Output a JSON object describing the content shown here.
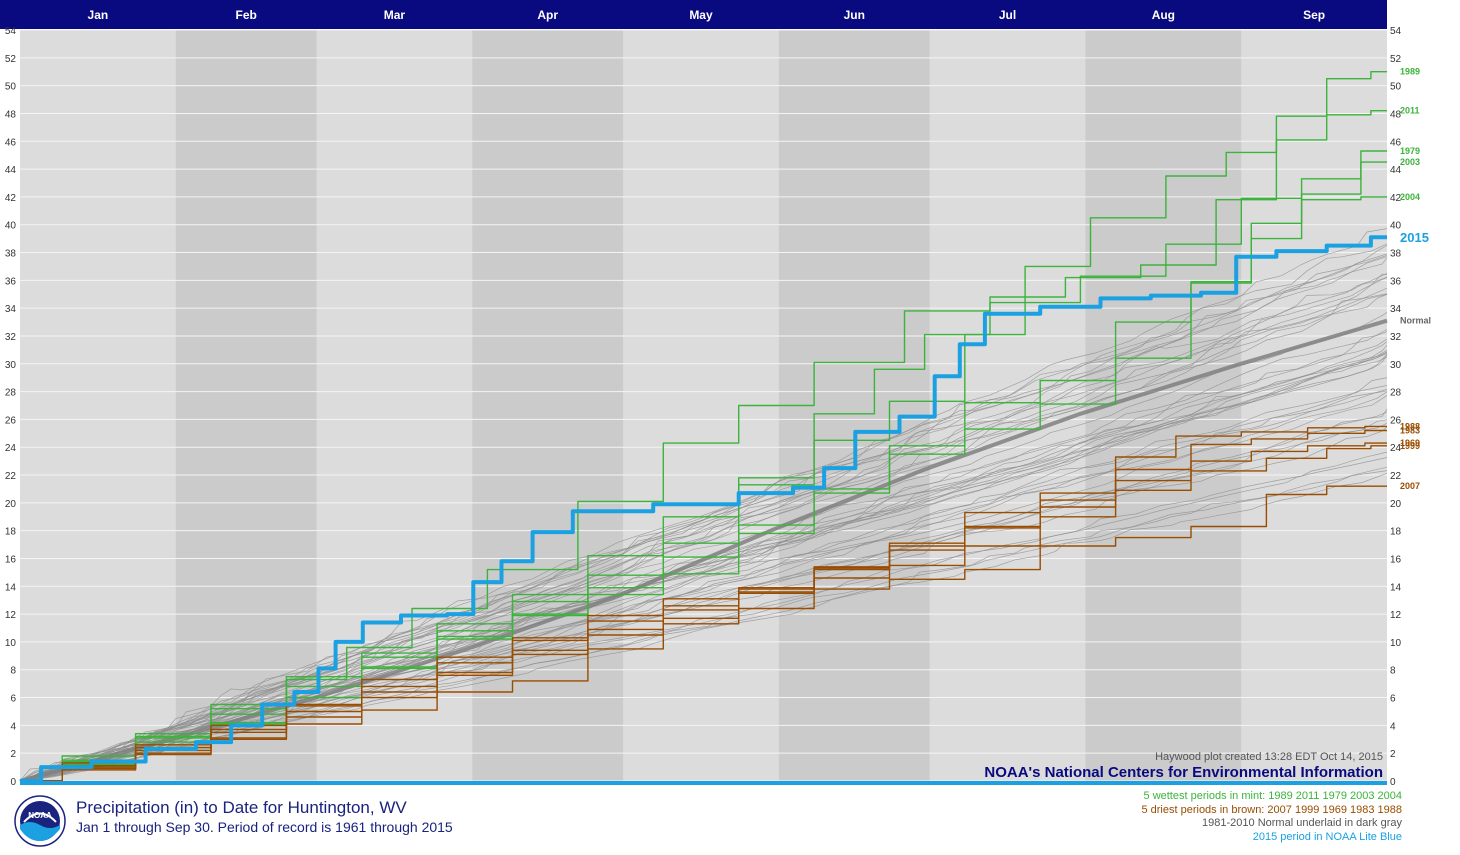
{
  "chart_data": {
    "type": "line",
    "months": [
      "Jan",
      "Feb",
      "Mar",
      "Apr",
      "May",
      "Jun",
      "Jul",
      "Aug",
      "Sep"
    ],
    "x_unit": "day_of_year",
    "xlim": [
      1,
      273
    ],
    "ylim": [
      0,
      54
    ],
    "y_ticks": [
      0,
      2,
      4,
      6,
      8,
      10,
      12,
      14,
      16,
      18,
      20,
      22,
      24,
      26,
      28,
      30,
      32,
      34,
      36,
      38,
      40,
      42,
      44,
      46,
      48,
      50,
      52,
      54
    ],
    "grid": true,
    "series": [
      {
        "name": "1989",
        "group": "wettest",
        "color": "#3cb33c",
        "points": [
          [
            1,
            0
          ],
          [
            15,
            1.2
          ],
          [
            30,
            2.8
          ],
          [
            45,
            4.1
          ],
          [
            60,
            6.0
          ],
          [
            75,
            8.2
          ],
          [
            90,
            10.8
          ],
          [
            105,
            12.9
          ],
          [
            120,
            16.2
          ],
          [
            135,
            19.0
          ],
          [
            150,
            21.8
          ],
          [
            165,
            24.5
          ],
          [
            180,
            27.3
          ],
          [
            195,
            32.1
          ],
          [
            205,
            37.0
          ],
          [
            220,
            40.5
          ],
          [
            235,
            43.5
          ],
          [
            245,
            45.2
          ],
          [
            255,
            47.8
          ],
          [
            265,
            50.5
          ],
          [
            273,
            51.0
          ]
        ]
      },
      {
        "name": "2011",
        "group": "wettest",
        "color": "#3cb33c",
        "points": [
          [
            1,
            0
          ],
          [
            15,
            1.5
          ],
          [
            30,
            3.2
          ],
          [
            45,
            4.8
          ],
          [
            60,
            7.3
          ],
          [
            70,
            9.6
          ],
          [
            85,
            12.4
          ],
          [
            100,
            15.2
          ],
          [
            120,
            20.1
          ],
          [
            135,
            24.3
          ],
          [
            150,
            27.0
          ],
          [
            165,
            30.1
          ],
          [
            185,
            33.8
          ],
          [
            200,
            34.8
          ],
          [
            215,
            36.2
          ],
          [
            230,
            37.1
          ],
          [
            245,
            41.8
          ],
          [
            255,
            46.1
          ],
          [
            265,
            47.9
          ],
          [
            273,
            48.2
          ]
        ]
      },
      {
        "name": "1979",
        "group": "wettest",
        "color": "#3cb33c",
        "points": [
          [
            1,
            0
          ],
          [
            15,
            1.0
          ],
          [
            30,
            2.4
          ],
          [
            45,
            4.2
          ],
          [
            60,
            6.0
          ],
          [
            75,
            8.1
          ],
          [
            90,
            10.2
          ],
          [
            105,
            11.9
          ],
          [
            120,
            13.4
          ],
          [
            135,
            14.9
          ],
          [
            150,
            17.8
          ],
          [
            165,
            20.7
          ],
          [
            180,
            23.5
          ],
          [
            195,
            27.2
          ],
          [
            210,
            28.8
          ],
          [
            225,
            30.4
          ],
          [
            240,
            35.8
          ],
          [
            250,
            39.0
          ],
          [
            260,
            42.2
          ],
          [
            273,
            45.3
          ]
        ]
      },
      {
        "name": "2003",
        "group": "wettest",
        "color": "#3cb33c",
        "points": [
          [
            1,
            0
          ],
          [
            15,
            1.8
          ],
          [
            30,
            3.4
          ],
          [
            45,
            5.5
          ],
          [
            60,
            7.5
          ],
          [
            75,
            9.2
          ],
          [
            90,
            11.3
          ],
          [
            105,
            13.4
          ],
          [
            120,
            14.8
          ],
          [
            135,
            17.1
          ],
          [
            150,
            21.3
          ],
          [
            165,
            26.4
          ],
          [
            175,
            29.6
          ],
          [
            185,
            32.1
          ],
          [
            200,
            34.4
          ],
          [
            220,
            36.3
          ],
          [
            235,
            38.6
          ],
          [
            250,
            41.9
          ],
          [
            260,
            43.3
          ],
          [
            273,
            44.5
          ]
        ]
      },
      {
        "name": "2004",
        "group": "wettest",
        "color": "#3cb33c",
        "points": [
          [
            1,
            0
          ],
          [
            15,
            1.4
          ],
          [
            30,
            3.1
          ],
          [
            45,
            5.2
          ],
          [
            60,
            6.8
          ],
          [
            75,
            8.9
          ],
          [
            90,
            10.4
          ],
          [
            105,
            12.0
          ],
          [
            120,
            13.9
          ],
          [
            135,
            16.1
          ],
          [
            150,
            18.4
          ],
          [
            165,
            21.0
          ],
          [
            180,
            24.1
          ],
          [
            195,
            25.3
          ],
          [
            210,
            27.1
          ],
          [
            225,
            33.0
          ],
          [
            240,
            35.9
          ],
          [
            250,
            40.1
          ],
          [
            260,
            41.8
          ],
          [
            273,
            42.0
          ]
        ]
      },
      {
        "name": "2007",
        "group": "driest",
        "color": "#994d00",
        "points": [
          [
            1,
            0
          ],
          [
            15,
            0.9
          ],
          [
            30,
            2.0
          ],
          [
            45,
            3.1
          ],
          [
            60,
            4.1
          ],
          [
            75,
            5.1
          ],
          [
            90,
            6.4
          ],
          [
            105,
            7.2
          ],
          [
            120,
            9.5
          ],
          [
            135,
            11.3
          ],
          [
            150,
            12.4
          ],
          [
            165,
            13.8
          ],
          [
            180,
            14.5
          ],
          [
            195,
            15.2
          ],
          [
            210,
            16.9
          ],
          [
            225,
            17.5
          ],
          [
            240,
            18.3
          ],
          [
            255,
            20.6
          ],
          [
            265,
            21.2
          ],
          [
            273,
            21.2
          ]
        ]
      },
      {
        "name": "1999",
        "group": "driest",
        "color": "#994d00",
        "points": [
          [
            1,
            0
          ],
          [
            15,
            1.0
          ],
          [
            30,
            2.2
          ],
          [
            45,
            3.5
          ],
          [
            60,
            5.4
          ],
          [
            75,
            6.8
          ],
          [
            90,
            8.5
          ],
          [
            105,
            10.3
          ],
          [
            120,
            11.9
          ],
          [
            135,
            13.1
          ],
          [
            150,
            13.8
          ],
          [
            165,
            15.2
          ],
          [
            180,
            16.9
          ],
          [
            195,
            18.3
          ],
          [
            210,
            20.2
          ],
          [
            225,
            21.6
          ],
          [
            240,
            22.3
          ],
          [
            255,
            23.2
          ],
          [
            265,
            23.9
          ],
          [
            273,
            24.1
          ]
        ]
      },
      {
        "name": "1969",
        "group": "driest",
        "color": "#994d00",
        "points": [
          [
            1,
            0
          ],
          [
            15,
            0.8
          ],
          [
            30,
            1.9
          ],
          [
            45,
            3.0
          ],
          [
            60,
            4.6
          ],
          [
            75,
            6.0
          ],
          [
            90,
            7.6
          ],
          [
            105,
            9.1
          ],
          [
            120,
            10.5
          ],
          [
            135,
            11.7
          ],
          [
            150,
            13.5
          ],
          [
            165,
            14.6
          ],
          [
            180,
            15.5
          ],
          [
            195,
            16.9
          ],
          [
            210,
            19.0
          ],
          [
            225,
            20.9
          ],
          [
            240,
            23.0
          ],
          [
            250,
            23.7
          ],
          [
            262,
            24.1
          ],
          [
            273,
            24.3
          ]
        ]
      },
      {
        "name": "1983",
        "group": "driest",
        "color": "#994d00",
        "points": [
          [
            1,
            0
          ],
          [
            15,
            1.3
          ],
          [
            30,
            2.6
          ],
          [
            45,
            4.0
          ],
          [
            60,
            5.5
          ],
          [
            75,
            7.3
          ],
          [
            90,
            8.9
          ],
          [
            105,
            10.1
          ],
          [
            120,
            11.5
          ],
          [
            135,
            12.6
          ],
          [
            150,
            13.9
          ],
          [
            165,
            15.3
          ],
          [
            180,
            16.6
          ],
          [
            195,
            18.2
          ],
          [
            210,
            19.7
          ],
          [
            225,
            22.4
          ],
          [
            240,
            24.2
          ],
          [
            250,
            24.6
          ],
          [
            262,
            25.0
          ],
          [
            273,
            25.2
          ]
        ]
      },
      {
        "name": "1988",
        "group": "driest",
        "color": "#994d00",
        "points": [
          [
            1,
            0
          ],
          [
            15,
            1.1
          ],
          [
            30,
            2.4
          ],
          [
            45,
            3.7
          ],
          [
            60,
            5.0
          ],
          [
            75,
            6.4
          ],
          [
            90,
            7.8
          ],
          [
            105,
            9.4
          ],
          [
            120,
            10.9
          ],
          [
            135,
            12.3
          ],
          [
            150,
            13.6
          ],
          [
            165,
            15.4
          ],
          [
            180,
            17.1
          ],
          [
            195,
            19.3
          ],
          [
            210,
            20.7
          ],
          [
            225,
            23.3
          ],
          [
            235,
            24.8
          ],
          [
            250,
            25.1
          ],
          [
            262,
            25.4
          ],
          [
            273,
            25.5
          ]
        ]
      },
      {
        "name": "Normal",
        "group": "normal",
        "color": "#808080",
        "points": [
          [
            1,
            0
          ],
          [
            31,
            3.0
          ],
          [
            59,
            5.9
          ],
          [
            90,
            9.5
          ],
          [
            120,
            13.3
          ],
          [
            151,
            18.1
          ],
          [
            181,
            22.4
          ],
          [
            212,
            26.4
          ],
          [
            243,
            29.9
          ],
          [
            273,
            33.1
          ]
        ]
      },
      {
        "name": "2015",
        "group": "current",
        "color": "#1ba1e2",
        "points": [
          [
            1,
            0
          ],
          [
            8,
            1.0
          ],
          [
            20,
            1.4
          ],
          [
            30,
            2.3
          ],
          [
            40,
            2.8
          ],
          [
            45,
            4.0
          ],
          [
            52,
            5.5
          ],
          [
            58,
            6.4
          ],
          [
            62,
            8.1
          ],
          [
            65,
            10.0
          ],
          [
            72,
            11.4
          ],
          [
            80,
            11.9
          ],
          [
            90,
            12.0
          ],
          [
            92,
            14.3
          ],
          [
            100,
            15.8
          ],
          [
            105,
            17.9
          ],
          [
            115,
            19.4
          ],
          [
            135,
            19.9
          ],
          [
            150,
            20.7
          ],
          [
            158,
            21.1
          ],
          [
            163,
            22.5
          ],
          [
            170,
            25.1
          ],
          [
            180,
            26.2
          ],
          [
            185,
            29.1
          ],
          [
            190,
            31.4
          ],
          [
            195,
            33.6
          ],
          [
            210,
            34.1
          ],
          [
            220,
            34.7
          ],
          [
            230,
            34.9
          ],
          [
            240,
            35.1
          ],
          [
            245,
            37.7
          ],
          [
            255,
            38.1
          ],
          [
            265,
            38.5
          ],
          [
            273,
            39.1
          ]
        ]
      }
    ],
    "background_series_color": "#8c8c8c",
    "right_labels": [
      {
        "text": "1989",
        "y": 51.0,
        "color": "#3cb33c"
      },
      {
        "text": "2011",
        "y": 48.2,
        "color": "#3cb33c"
      },
      {
        "text": "1979",
        "y": 45.3,
        "color": "#3cb33c"
      },
      {
        "text": "2003",
        "y": 44.5,
        "color": "#3cb33c"
      },
      {
        "text": "2004",
        "y": 42.0,
        "color": "#3cb33c"
      },
      {
        "text": "2015",
        "y": 39.1,
        "color": "#1ba1e2",
        "bold_large": true
      },
      {
        "text": "Normal",
        "y": 33.1,
        "color": "#666666"
      },
      {
        "text": "1988",
        "y": 25.5,
        "color": "#994d00"
      },
      {
        "text": "1983",
        "y": 25.2,
        "color": "#994d00"
      },
      {
        "text": "1969",
        "y": 24.3,
        "color": "#994d00"
      },
      {
        "text": "1999",
        "y": 24.1,
        "color": "#994d00"
      },
      {
        "text": "2007",
        "y": 21.2,
        "color": "#994d00"
      }
    ],
    "annotation": "Haywood plot created 13:28 EDT Oct 14, 2015",
    "watermark": "NOAA's National Centers for Environmental Information"
  },
  "footer": {
    "title_line1": "Precipitation (in) to Date for Huntington, WV",
    "title_line2": "Jan 1 through Sep 30. Period of record is 1961 through 2015",
    "legend": [
      {
        "text": "5 wettest periods in mint: 1989 2011 1979 2003 2004",
        "color": "#3cb33c"
      },
      {
        "text": "5 driest periods in brown: 2007 1999 1969 1983 1988",
        "color": "#994d00"
      },
      {
        "text": "1981-2010 Normal underlaid in dark gray",
        "color": "#555555"
      },
      {
        "text": "2015 period in NOAA Lite Blue",
        "color": "#1ba1e2"
      }
    ]
  },
  "logo": {
    "text": "NOAA"
  },
  "colors": {
    "header_bg": "#0a0a80",
    "plot_bg_light": "#dcdcdc",
    "plot_bg_dark": "#cbcbcb"
  }
}
